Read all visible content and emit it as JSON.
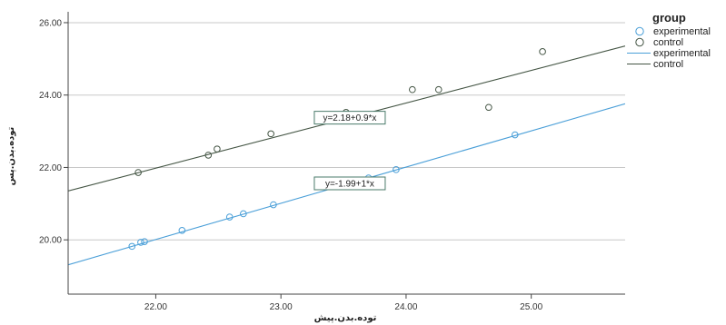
{
  "chart_data": {
    "type": "scatter",
    "xlabel": "توده.بدن.پیش",
    "ylabel": "توده.بدن.پس",
    "xlim": [
      21.3,
      25.75
    ],
    "ylim": [
      18.5,
      26.3
    ],
    "x_ticks": [
      "22.00",
      "23.00",
      "24.00",
      "25.00"
    ],
    "y_ticks": [
      "20.00",
      "22.00",
      "24.00",
      "26.00"
    ],
    "grid": "horizontal",
    "legend": {
      "title": "group",
      "placement": "top-right",
      "entries": [
        {
          "label": "experimental",
          "kind": "marker",
          "color": "#4a9fd8"
        },
        {
          "label": "control",
          "kind": "marker",
          "color": "#445544"
        },
        {
          "label": "experimental",
          "kind": "line",
          "color": "#4a9fd8"
        },
        {
          "label": "control",
          "kind": "line",
          "color": "#445544"
        }
      ]
    },
    "series": [
      {
        "name": "experimental",
        "color": "#4a9fd8",
        "points": [
          [
            21.81,
            19.82
          ],
          [
            21.88,
            19.93
          ],
          [
            21.91,
            19.95
          ],
          [
            22.21,
            20.26
          ],
          [
            22.59,
            20.63
          ],
          [
            22.7,
            20.72
          ],
          [
            22.94,
            20.97
          ],
          [
            23.7,
            21.71
          ],
          [
            23.92,
            21.94
          ],
          [
            24.87,
            22.9
          ]
        ],
        "fit": {
          "intercept": -1.99,
          "slope": 1,
          "label": "y=-1.99+1*x"
        }
      },
      {
        "name": "control",
        "color": "#445544",
        "points": [
          [
            21.86,
            21.86
          ],
          [
            22.42,
            22.34
          ],
          [
            22.49,
            22.51
          ],
          [
            22.92,
            22.93
          ],
          [
            23.52,
            23.52
          ],
          [
            24.05,
            24.15
          ],
          [
            24.26,
            24.15
          ],
          [
            24.66,
            23.66
          ],
          [
            25.09,
            25.2
          ]
        ],
        "fit": {
          "intercept": 2.18,
          "slope": 0.9,
          "label": "y=2.18+0.9*x"
        }
      }
    ]
  }
}
